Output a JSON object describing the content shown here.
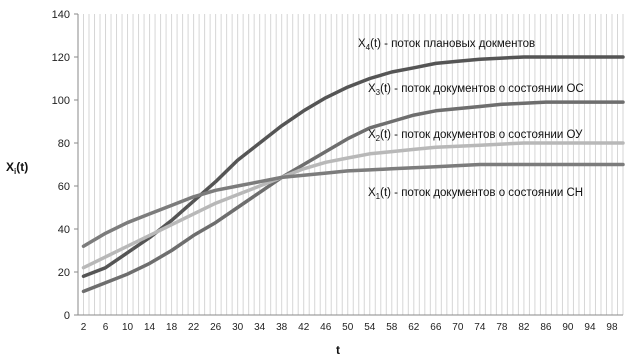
{
  "chart_data": {
    "type": "line",
    "xlabel": "t",
    "ylabel_main": "X",
    "ylabel_sub": "i",
    "ylabel_suffix": "(t)",
    "ylim": [
      0,
      140
    ],
    "yticks": [
      "0",
      "20",
      "40",
      "60",
      "80",
      "100",
      "120",
      "140"
    ],
    "xlim": [
      1,
      100
    ],
    "xticks": [
      "2",
      "6",
      "10",
      "14",
      "18",
      "22",
      "26",
      "30",
      "34",
      "38",
      "42",
      "46",
      "50",
      "54",
      "58",
      "62",
      "66",
      "70",
      "74",
      "78",
      "82",
      "86",
      "90",
      "94",
      "98"
    ],
    "grid": "vertical",
    "series": [
      {
        "key": "x4",
        "label_main": "X",
        "label_sub": "4",
        "label_rest": "(t) - поток плановых докментов",
        "color": "#555555",
        "points": [
          [
            2,
            18
          ],
          [
            6,
            22
          ],
          [
            10,
            29
          ],
          [
            14,
            36
          ],
          [
            18,
            44
          ],
          [
            22,
            53
          ],
          [
            26,
            62
          ],
          [
            30,
            72
          ],
          [
            34,
            80
          ],
          [
            38,
            88
          ],
          [
            42,
            95
          ],
          [
            46,
            101
          ],
          [
            50,
            106
          ],
          [
            54,
            110
          ],
          [
            58,
            113
          ],
          [
            62,
            115
          ],
          [
            66,
            117
          ],
          [
            70,
            118
          ],
          [
            74,
            119
          ],
          [
            78,
            119.5
          ],
          [
            82,
            120
          ],
          [
            86,
            120
          ],
          [
            90,
            120
          ],
          [
            94,
            120
          ],
          [
            98,
            120
          ],
          [
            100,
            120
          ]
        ]
      },
      {
        "key": "x3",
        "label_main": "X",
        "label_sub": "3",
        "label_rest": "(t) - поток документов  о состоянии ОС",
        "color": "#6e6e6e",
        "points": [
          [
            2,
            11
          ],
          [
            6,
            15
          ],
          [
            10,
            19
          ],
          [
            14,
            24
          ],
          [
            18,
            30
          ],
          [
            22,
            37
          ],
          [
            26,
            43
          ],
          [
            30,
            50
          ],
          [
            34,
            57
          ],
          [
            38,
            64
          ],
          [
            42,
            70
          ],
          [
            46,
            76
          ],
          [
            50,
            82
          ],
          [
            54,
            87
          ],
          [
            58,
            90
          ],
          [
            62,
            93
          ],
          [
            66,
            95
          ],
          [
            70,
            96
          ],
          [
            74,
            97
          ],
          [
            78,
            98
          ],
          [
            82,
            98.5
          ],
          [
            86,
            99
          ],
          [
            90,
            99
          ],
          [
            94,
            99
          ],
          [
            98,
            99
          ],
          [
            100,
            99
          ]
        ]
      },
      {
        "key": "x2",
        "label_main": "X",
        "label_sub": "2",
        "label_rest": "(t) - поток документов  о состоянии ОУ",
        "color": "#b8b8b8",
        "points": [
          [
            2,
            22
          ],
          [
            6,
            27
          ],
          [
            10,
            32
          ],
          [
            14,
            37
          ],
          [
            18,
            42
          ],
          [
            22,
            47
          ],
          [
            26,
            52
          ],
          [
            30,
            56
          ],
          [
            34,
            60
          ],
          [
            38,
            64
          ],
          [
            42,
            68
          ],
          [
            46,
            71
          ],
          [
            50,
            73
          ],
          [
            54,
            75
          ],
          [
            58,
            76
          ],
          [
            62,
            77
          ],
          [
            66,
            78
          ],
          [
            70,
            78.5
          ],
          [
            74,
            79
          ],
          [
            78,
            79.5
          ],
          [
            82,
            80
          ],
          [
            86,
            80
          ],
          [
            90,
            80
          ],
          [
            94,
            80
          ],
          [
            98,
            80
          ],
          [
            100,
            80
          ]
        ]
      },
      {
        "key": "x1",
        "label_main": "X",
        "label_sub": "1",
        "label_rest": "(t) - поток документов  о состоянии СН",
        "color": "#7c7c7c",
        "points": [
          [
            2,
            32
          ],
          [
            6,
            38
          ],
          [
            10,
            43
          ],
          [
            14,
            47
          ],
          [
            18,
            51
          ],
          [
            22,
            55
          ],
          [
            26,
            58
          ],
          [
            30,
            60
          ],
          [
            34,
            62
          ],
          [
            38,
            64
          ],
          [
            42,
            65
          ],
          [
            46,
            66
          ],
          [
            50,
            67
          ],
          [
            54,
            67.5
          ],
          [
            58,
            68
          ],
          [
            62,
            68.5
          ],
          [
            66,
            69
          ],
          [
            70,
            69.5
          ],
          [
            74,
            70
          ],
          [
            78,
            70
          ],
          [
            82,
            70
          ],
          [
            86,
            70
          ],
          [
            90,
            70
          ],
          [
            94,
            70
          ],
          [
            98,
            70
          ],
          [
            100,
            70
          ]
        ]
      }
    ]
  }
}
